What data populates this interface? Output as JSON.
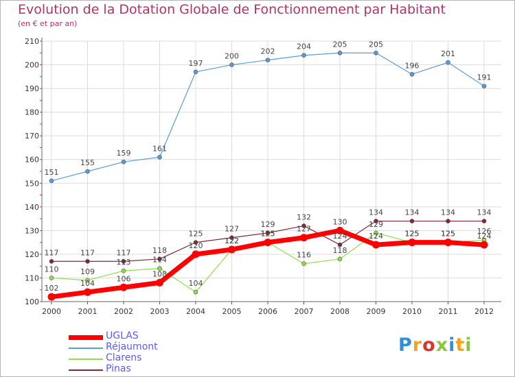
{
  "chart_data": {
    "type": "line",
    "title": "Evolution de la Dotation Globale de Fonctionnement par Habitant",
    "subtitle": "(en € et par an)",
    "xlabel": "",
    "ylabel": "",
    "ylim": [
      100,
      210
    ],
    "yticks": [
      100,
      110,
      120,
      130,
      140,
      150,
      160,
      170,
      180,
      190,
      200,
      210
    ],
    "x": [
      "2000",
      "2001",
      "2002",
      "2003",
      "2004",
      "2005",
      "2006",
      "2007",
      "2008",
      "2009",
      "2010",
      "2011",
      "2012"
    ],
    "grid": true,
    "legend_position": "bottom-left",
    "series": [
      {
        "name": "Réjaumont",
        "color": "#5b9bd5",
        "width": 1.2,
        "values": [
          151,
          155,
          159,
          161,
          197,
          200,
          202,
          204,
          205,
          205,
          196,
          201,
          191
        ]
      },
      {
        "name": "Clarens",
        "color": "#8fdd4c",
        "width": 1.2,
        "values": [
          110,
          109,
          113,
          114,
          104,
          122,
          125,
          116,
          118,
          129,
          125,
          125,
          126
        ]
      },
      {
        "name": "Pinas",
        "color": "#7d2a33",
        "width": 1.2,
        "values": [
          117,
          117,
          117,
          118,
          125,
          127,
          129,
          132,
          124,
          134,
          134,
          134,
          134
        ]
      },
      {
        "name": "UGLAS",
        "color": "#ff0000",
        "width": 7,
        "values": [
          102,
          104,
          106,
          108,
          120,
          122,
          125,
          127,
          130,
          124,
          125,
          125,
          124
        ]
      }
    ],
    "legend": [
      {
        "name": "UGLAS",
        "color": "#ff0000",
        "width": 7
      },
      {
        "name": "Réjaumont",
        "color": "#5b9bd5",
        "width": 1.5
      },
      {
        "name": "Clarens",
        "color": "#8fdd4c",
        "width": 1.5
      },
      {
        "name": "Pinas",
        "color": "#7d2a33",
        "width": 1.5
      }
    ]
  },
  "logo": {
    "letters": [
      "P",
      "r",
      "o",
      "x",
      "i",
      "t",
      "i"
    ],
    "colors": [
      "#2f8fd8",
      "#f7a21b",
      "#e0312d",
      "#8cc63f",
      "#2f8fd8",
      "#f7a21b",
      "#8cc63f"
    ]
  }
}
